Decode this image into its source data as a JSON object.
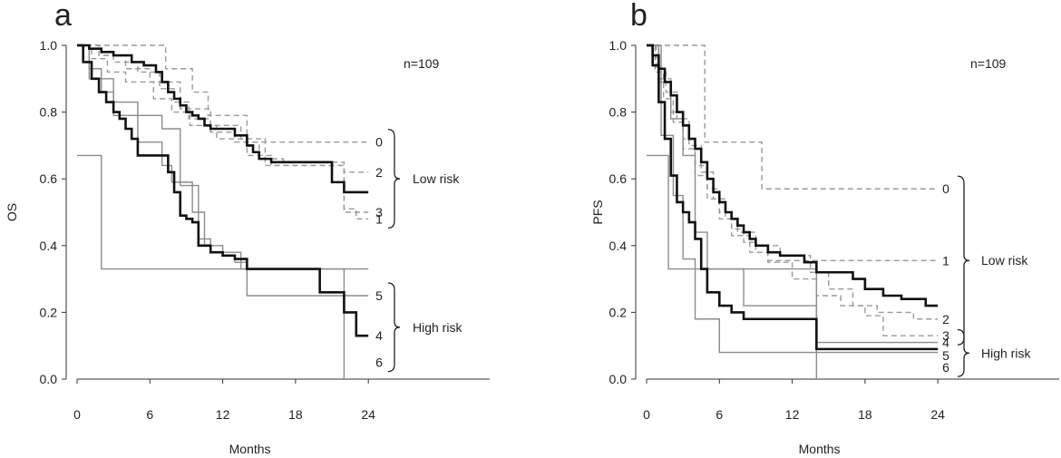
{
  "colors": {
    "bold": "#111111",
    "thin": "#8c8c8c",
    "dashed": "#9a9a9a",
    "axis": "#333333"
  },
  "chart_data": [
    {
      "type": "line",
      "panel": "a",
      "ylabel": "OS",
      "xlabel": "Months",
      "xlim": [
        0,
        34
      ],
      "ylim": [
        0,
        1
      ],
      "xticks": [
        0,
        6,
        12,
        18,
        24
      ],
      "yticks": [
        "0.0",
        "0.2",
        "0.4",
        "0.6",
        "0.8",
        "1.0"
      ],
      "ytick_values": [
        0,
        0.2,
        0.4,
        0.6,
        0.8,
        1.0
      ],
      "grid": false,
      "annotation": "n=109",
      "group_labels": [
        {
          "text": "Low risk",
          "members": [
            "0",
            "2",
            "3",
            "1"
          ]
        },
        {
          "text": "High risk",
          "members": [
            "5",
            "4",
            "6"
          ]
        }
      ],
      "series": [
        {
          "name": "0",
          "style": "dashed",
          "label_y": 0.71,
          "x": [
            0,
            1.5,
            4.5,
            7.3,
            9.5,
            10.8,
            14.0,
            20.5,
            24.0
          ],
          "y": [
            1.0,
            1.0,
            1.0,
            0.93,
            0.86,
            0.79,
            0.71,
            0.71,
            0.71
          ]
        },
        {
          "name": "2",
          "style": "dashed",
          "label_y": 0.62,
          "x": [
            0,
            1.8,
            3.0,
            5.0,
            6.8,
            8.0,
            9.2,
            11.0,
            13.0,
            15.0,
            17.0,
            21.0,
            22.0,
            24.0
          ],
          "y": [
            1.0,
            0.97,
            0.95,
            0.92,
            0.87,
            0.83,
            0.78,
            0.74,
            0.71,
            0.66,
            0.65,
            0.65,
            0.62,
            0.62
          ]
        },
        {
          "name": "3",
          "style": "dashed",
          "label_y": 0.5,
          "x": [
            0,
            1.2,
            2.5,
            4.0,
            6.3,
            7.8,
            9.3,
            11.5,
            14.0,
            16.0,
            21.0,
            22.0,
            24.0
          ],
          "y": [
            1.0,
            0.96,
            0.92,
            0.89,
            0.84,
            0.8,
            0.76,
            0.72,
            0.67,
            0.64,
            0.64,
            0.5,
            0.5
          ]
        },
        {
          "name": "1",
          "style": "dashed",
          "label_y": 0.48,
          "x": [
            0,
            2.0,
            4.0,
            6.0,
            8.5,
            11.0,
            13.5,
            15.5,
            21.0,
            22.0,
            23.0,
            24.0
          ],
          "y": [
            1.0,
            0.97,
            0.93,
            0.89,
            0.81,
            0.76,
            0.72,
            0.64,
            0.64,
            0.51,
            0.48,
            0.48
          ]
        },
        {
          "name": "Low risk (pooled)",
          "style": "bold",
          "x": [
            0,
            1.0,
            2.0,
            3.0,
            4.5,
            5.5,
            6.5,
            7.0,
            7.5,
            8.0,
            8.5,
            9.0,
            9.5,
            10.0,
            10.5,
            11.0,
            11.5,
            12.0,
            13.0,
            14.0,
            14.5,
            15.0,
            16.0,
            17.0,
            20.5,
            21.0,
            22.0,
            24.0
          ],
          "y": [
            1.0,
            0.99,
            0.98,
            0.97,
            0.95,
            0.94,
            0.92,
            0.89,
            0.86,
            0.84,
            0.82,
            0.8,
            0.79,
            0.78,
            0.76,
            0.75,
            0.75,
            0.75,
            0.73,
            0.7,
            0.68,
            0.66,
            0.65,
            0.65,
            0.65,
            0.59,
            0.56,
            0.56
          ]
        },
        {
          "name": "5",
          "style": "thin",
          "label_y": 0.25,
          "x": [
            0,
            1.0,
            3.0,
            5.0,
            7.0,
            8.5,
            10.0,
            11.0,
            13.5,
            14.0,
            18.0,
            20.0,
            24.0
          ],
          "y": [
            1.0,
            0.9,
            0.83,
            0.79,
            0.75,
            0.58,
            0.42,
            0.38,
            0.33,
            0.25,
            0.25,
            0.25,
            0.25
          ]
        },
        {
          "name": "High risk (pooled)",
          "style": "bold",
          "x": [
            0,
            0.5,
            1.2,
            1.8,
            2.4,
            3.0,
            3.5,
            4.0,
            4.5,
            5.0,
            6.0,
            7.5,
            8.0,
            8.5,
            9.0,
            9.5,
            10.0,
            11.0,
            12.0,
            13.0,
            14.0,
            15.0,
            17.0,
            20.0,
            21.0,
            22.0,
            23.0,
            24.0
          ],
          "y": [
            1.0,
            0.95,
            0.9,
            0.86,
            0.83,
            0.8,
            0.78,
            0.75,
            0.72,
            0.67,
            0.67,
            0.62,
            0.56,
            0.49,
            0.48,
            0.47,
            0.4,
            0.38,
            0.37,
            0.36,
            0.33,
            0.33,
            0.33,
            0.26,
            0.26,
            0.2,
            0.13,
            0.13
          ]
        },
        {
          "name": "4",
          "style": "thin",
          "label_y": 0.13,
          "x": [
            0,
            1.0,
            2.0,
            3.0,
            5.0,
            7.0,
            7.8,
            9.5,
            10.5,
            12.0,
            13.0,
            14.0,
            20.0,
            22.0,
            24.0
          ],
          "y": [
            1.0,
            0.93,
            0.86,
            0.79,
            0.71,
            0.64,
            0.59,
            0.5,
            0.4,
            0.37,
            0.35,
            0.33,
            0.33,
            0.33,
            0.33
          ]
        },
        {
          "name": "6",
          "style": "thin",
          "label_y": 0.05,
          "x": [
            0,
            2.0,
            20.0,
            22.0
          ],
          "y": [
            0.67,
            0.33,
            0.33,
            0.0
          ]
        }
      ]
    },
    {
      "type": "line",
      "panel": "b",
      "ylabel": "PFS",
      "xlabel": "Months",
      "xlim": [
        0,
        34
      ],
      "ylim": [
        0,
        1
      ],
      "xticks": [
        0,
        6,
        12,
        18,
        24
      ],
      "yticks": [
        "0.0",
        "0.2",
        "0.4",
        "0.6",
        "0.8",
        "1.0"
      ],
      "ytick_values": [
        0,
        0.2,
        0.4,
        0.6,
        0.8,
        1.0
      ],
      "grid": false,
      "annotation": "n=109",
      "group_labels": [
        {
          "text": "Low risk",
          "members": [
            "0",
            "1",
            "2",
            "3"
          ]
        },
        {
          "text": "High risk",
          "members": [
            "4",
            "5",
            "6"
          ]
        }
      ],
      "series": [
        {
          "name": "0",
          "style": "dashed",
          "label_y": 0.57,
          "x": [
            0,
            1.5,
            4.8,
            9.5,
            24.0
          ],
          "y": [
            1.0,
            1.0,
            0.71,
            0.57,
            0.57
          ]
        },
        {
          "name": "1",
          "style": "dashed",
          "label_y": 0.355,
          "x": [
            0,
            1.0,
            2.0,
            3.0,
            4.0,
            5.0,
            6.0,
            7.0,
            8.0,
            9.0,
            10.0,
            24.0
          ],
          "y": [
            1.0,
            0.9,
            0.8,
            0.72,
            0.64,
            0.57,
            0.5,
            0.45,
            0.41,
            0.38,
            0.355,
            0.355
          ]
        },
        {
          "name": "2",
          "style": "dashed",
          "label_y": 0.18,
          "x": [
            0,
            0.8,
            1.6,
            2.5,
            3.5,
            4.5,
            5.5,
            6.5,
            7.5,
            9.0,
            11.0,
            13.5,
            15.0,
            17.0,
            19.0,
            22.0,
            24.0
          ],
          "y": [
            1.0,
            0.93,
            0.86,
            0.78,
            0.7,
            0.62,
            0.54,
            0.48,
            0.44,
            0.4,
            0.37,
            0.32,
            0.27,
            0.22,
            0.2,
            0.18,
            0.18
          ]
        },
        {
          "name": "3",
          "style": "dashed",
          "label_y": 0.13,
          "x": [
            0,
            0.7,
            1.4,
            2.2,
            3.0,
            4.0,
            5.0,
            6.0,
            7.0,
            8.5,
            10.0,
            12.0,
            14.0,
            16.0,
            18.0,
            19.5,
            24.0
          ],
          "y": [
            1.0,
            0.92,
            0.84,
            0.77,
            0.69,
            0.61,
            0.54,
            0.48,
            0.43,
            0.38,
            0.35,
            0.3,
            0.25,
            0.22,
            0.19,
            0.13,
            0.13
          ]
        },
        {
          "name": "Low risk (pooled)",
          "style": "bold",
          "x": [
            0,
            0.5,
            1.0,
            1.5,
            2.0,
            2.5,
            3.0,
            3.5,
            4.0,
            4.5,
            5.0,
            5.5,
            6.0,
            6.5,
            7.0,
            7.5,
            8.0,
            8.5,
            9.0,
            10.0,
            11.0,
            12.0,
            13.0,
            14.0,
            16.0,
            17.0,
            18.0,
            19.5,
            21.0,
            23.0,
            24.0
          ],
          "y": [
            1.0,
            0.97,
            0.93,
            0.89,
            0.85,
            0.8,
            0.76,
            0.72,
            0.69,
            0.65,
            0.6,
            0.56,
            0.53,
            0.5,
            0.48,
            0.46,
            0.44,
            0.42,
            0.4,
            0.38,
            0.37,
            0.37,
            0.35,
            0.32,
            0.32,
            0.3,
            0.27,
            0.25,
            0.24,
            0.22,
            0.22
          ]
        },
        {
          "name": "High risk (pooled)",
          "style": "bold",
          "x": [
            0,
            0.5,
            1.0,
            1.5,
            2.0,
            2.5,
            3.0,
            3.5,
            4.0,
            4.5,
            5.0,
            6.0,
            7.0,
            8.0,
            9.0,
            14.0,
            24.0
          ],
          "y": [
            1.0,
            0.94,
            0.83,
            0.72,
            0.61,
            0.53,
            0.5,
            0.47,
            0.42,
            0.33,
            0.26,
            0.22,
            0.2,
            0.18,
            0.18,
            0.09,
            0.09
          ]
        },
        {
          "name": "4",
          "style": "thin",
          "label_y": 0.11,
          "x": [
            0,
            1.0,
            2.0,
            3.0,
            4.0,
            5.0,
            8.0,
            14.0,
            24.0
          ],
          "y": [
            1.0,
            0.89,
            0.78,
            0.67,
            0.44,
            0.33,
            0.22,
            0.11,
            0.11
          ]
        },
        {
          "name": "5",
          "style": "thin",
          "label_y": 0.07,
          "x": [
            0,
            1.2,
            2.2,
            3.0,
            4.0,
            6.0,
            24.0
          ],
          "y": [
            1.0,
            0.73,
            0.55,
            0.36,
            0.18,
            0.08,
            0.08
          ]
        },
        {
          "name": "6",
          "style": "thin",
          "label_y": 0.035,
          "x": [
            0,
            1.8,
            14.0,
            14.0
          ],
          "y": [
            0.67,
            0.33,
            0.33,
            0.0
          ]
        }
      ]
    }
  ]
}
